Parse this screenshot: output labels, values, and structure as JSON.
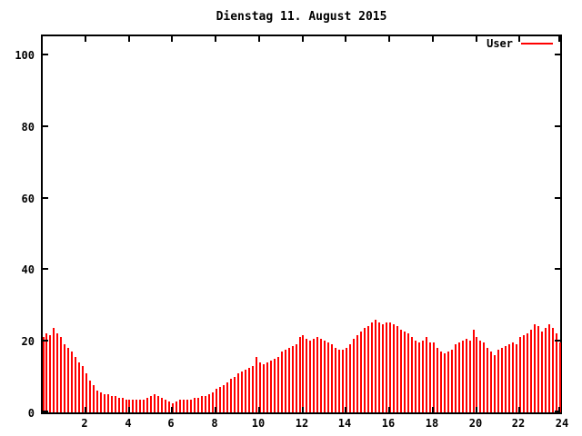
{
  "title": "Dienstag 11. August 2015",
  "legend": {
    "label": "User",
    "color": "#ff0000"
  },
  "colors": {
    "bar": "#ff0000",
    "axis": "#000000",
    "background": "#ffffff"
  },
  "chart_data": {
    "type": "bar",
    "title": "Dienstag 11. August 2015",
    "xlabel": "",
    "ylabel": "",
    "x_unit": "hour of day",
    "interval_minutes": 10,
    "x_range": [
      0,
      24
    ],
    "y_range": [
      0,
      105
    ],
    "x_ticks": [
      2,
      4,
      6,
      8,
      10,
      12,
      14,
      16,
      18,
      20,
      22,
      24
    ],
    "y_ticks": [
      0,
      20,
      40,
      60,
      80,
      100
    ],
    "grid": false,
    "legend_position": "top-right-inside",
    "series": [
      {
        "name": "User",
        "color": "#ff0000",
        "values": [
          21,
          22,
          21.5,
          23.5,
          22,
          21,
          19,
          18,
          17,
          15.5,
          14,
          13,
          11,
          9,
          7.5,
          6,
          5.5,
          5,
          5,
          4.5,
          4.5,
          4,
          4,
          3.5,
          3.5,
          3.5,
          3.5,
          3.5,
          3.5,
          4,
          4.5,
          5,
          4.5,
          4,
          3.5,
          3,
          2.5,
          3,
          3.5,
          3.5,
          3.5,
          3.5,
          4,
          4,
          4.5,
          4.5,
          5,
          5.5,
          6.5,
          7,
          7.5,
          8.5,
          9.5,
          10,
          11,
          11.5,
          12,
          12.5,
          13,
          15.5,
          14,
          13.5,
          14,
          14.5,
          15,
          15.5,
          17,
          17.5,
          18,
          18.5,
          19,
          21,
          21.5,
          20.5,
          20,
          20.5,
          21,
          20.5,
          20,
          19.5,
          19,
          18,
          17.5,
          17.5,
          18,
          19,
          20.5,
          21.5,
          22.5,
          23.5,
          24,
          25,
          26,
          25,
          24.5,
          25,
          25,
          24.5,
          24,
          23,
          22.5,
          22,
          21,
          20,
          19.5,
          20,
          21,
          19.5,
          19.5,
          18,
          17,
          16.5,
          17,
          17.5,
          19,
          19.5,
          20,
          20.5,
          20,
          23,
          21,
          20,
          19.5,
          18,
          17,
          16,
          17.5,
          18,
          18.5,
          19,
          19.5,
          19,
          21,
          21.5,
          22,
          23,
          24.5,
          24,
          22.5,
          23.5,
          24.5,
          23.5,
          22,
          19.5
        ]
      }
    ]
  }
}
